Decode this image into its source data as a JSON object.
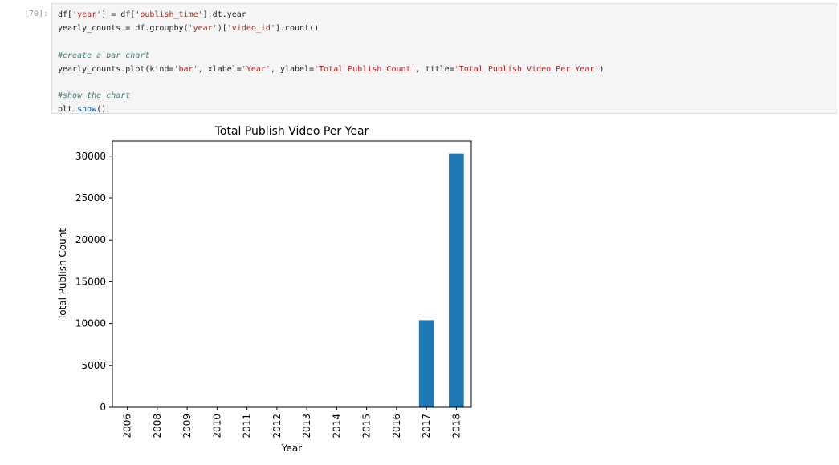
{
  "cell": {
    "prompt": "[70]:",
    "code_lines": [
      [
        {
          "t": "df["
        },
        {
          "t": "'year'",
          "c": "str"
        },
        {
          "t": "] = df["
        },
        {
          "t": "'publish_time'",
          "c": "str"
        },
        {
          "t": "].dt.year"
        }
      ],
      [
        {
          "t": "yearly_counts = df.groupby("
        },
        {
          "t": "'year'",
          "c": "str"
        },
        {
          "t": ")["
        },
        {
          "t": "'video_id'",
          "c": "str"
        },
        {
          "t": "].count()"
        }
      ],
      [],
      [
        {
          "t": "#create a bar chart",
          "c": "cmt"
        }
      ],
      [
        {
          "t": "yearly_counts.plot(kind="
        },
        {
          "t": "'bar'",
          "c": "str"
        },
        {
          "t": ", xlabel="
        },
        {
          "t": "'Year'",
          "c": "str"
        },
        {
          "t": ", ylabel="
        },
        {
          "t": "'Total Publish Count'",
          "c": "str"
        },
        {
          "t": ", title="
        },
        {
          "t": "'Total Publish Video Per Year'",
          "c": "str"
        },
        {
          "t": ")"
        }
      ],
      [],
      [
        {
          "t": "#show the chart",
          "c": "cmt"
        }
      ],
      [
        {
          "t": "plt."
        },
        {
          "t": "show",
          "c": "fn"
        },
        {
          "t": "()"
        }
      ]
    ]
  },
  "chart_data": {
    "type": "bar",
    "title": "Total Publish Video Per Year",
    "xlabel": "Year",
    "ylabel": "Total Publish Count",
    "categories": [
      "2006",
      "2008",
      "2009",
      "2010",
      "2011",
      "2012",
      "2013",
      "2014",
      "2015",
      "2016",
      "2017",
      "2018"
    ],
    "values": [
      1,
      1,
      1,
      1,
      1,
      1,
      1,
      1,
      2,
      10,
      10400,
      30300
    ],
    "ylim": [
      0,
      31800
    ],
    "yticks": [
      0,
      5000,
      10000,
      15000,
      20000,
      25000,
      30000
    ],
    "bar_color": "#1f77b4",
    "grid": false,
    "legend": "none"
  }
}
